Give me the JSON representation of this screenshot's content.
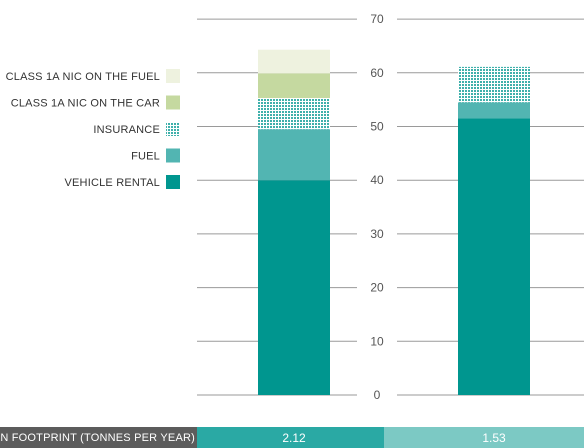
{
  "chart_data": {
    "type": "bar",
    "stacked": true,
    "categories": [
      "",
      ""
    ],
    "series": [
      {
        "name": "VEHICLE RENTAL",
        "values": [
          40,
          51.5
        ],
        "color": "#00968f",
        "pattern": "solid"
      },
      {
        "name": "FUEL",
        "values": [
          9.5,
          3
        ],
        "color": "#52b5b2",
        "pattern": "solid"
      },
      {
        "name": "INSURANCE",
        "values": [
          5.8,
          6.6
        ],
        "color": "#7fcac7",
        "pattern": "dotted"
      },
      {
        "name": "CLASS 1A NIC ON THE CAR",
        "values": [
          4.6,
          0
        ],
        "color": "#c5d9a0",
        "pattern": "solid"
      },
      {
        "name": "CLASS 1A NIC ON THE FUEL",
        "values": [
          4.4,
          0
        ],
        "color": "#eef2df",
        "pattern": "solid"
      }
    ],
    "ylim": [
      0,
      70
    ],
    "yticks": [
      "0",
      "10",
      "20",
      "30",
      "40",
      "50",
      "60",
      "70"
    ],
    "grid": true,
    "legend_position": "left",
    "footer": {
      "label": "CARBON FOOTPRINT (TONNES PER YEAR)",
      "values": [
        "2.12",
        "1.53"
      ],
      "colors": [
        "#2aa9a4",
        "#7cc9c4"
      ],
      "label_bg": "#5c5c5c"
    }
  }
}
